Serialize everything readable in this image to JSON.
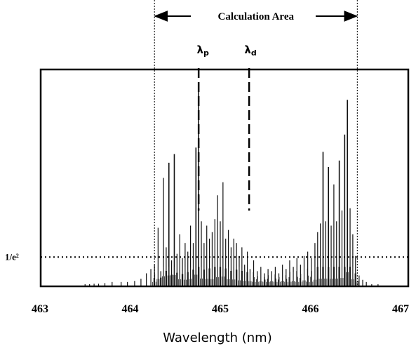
{
  "chart_data": {
    "type": "line",
    "xlabel": "Wavelength (nm)",
    "ylabel": "",
    "title": "",
    "xlim": [
      463,
      467
    ],
    "x_ticks": [
      "463",
      "464",
      "465",
      "466",
      "467"
    ],
    "ylim": [
      0,
      1
    ],
    "grid": false,
    "threshold": {
      "label": "1/e²",
      "value": 0.135
    },
    "calculation_area": {
      "label": "Calculation Area",
      "x_start": 464.27,
      "x_end": 466.52
    },
    "markers": [
      {
        "label_main": "λ",
        "label_sub": "p",
        "x": 464.76
      },
      {
        "label_main": "λ",
        "label_sub": "d",
        "x": 465.32
      }
    ],
    "series": [
      {
        "peaks": [
          [
            463.5,
            0.01
          ],
          [
            463.55,
            0.01
          ],
          [
            463.6,
            0.012
          ],
          [
            463.65,
            0.012
          ],
          [
            463.72,
            0.015
          ],
          [
            463.8,
            0.02
          ],
          [
            463.9,
            0.02
          ],
          [
            463.97,
            0.02
          ],
          [
            464.05,
            0.025
          ],
          [
            464.12,
            0.035
          ],
          [
            464.18,
            0.06
          ],
          [
            464.23,
            0.08
          ],
          [
            464.27,
            0.1
          ],
          [
            464.31,
            0.27
          ],
          [
            464.34,
            0.07
          ],
          [
            464.37,
            0.5
          ],
          [
            464.4,
            0.18
          ],
          [
            464.43,
            0.57
          ],
          [
            464.46,
            0.12
          ],
          [
            464.49,
            0.61
          ],
          [
            464.52,
            0.15
          ],
          [
            464.55,
            0.24
          ],
          [
            464.58,
            0.13
          ],
          [
            464.61,
            0.2
          ],
          [
            464.64,
            0.16
          ],
          [
            464.67,
            0.28
          ],
          [
            464.7,
            0.2
          ],
          [
            464.73,
            0.64
          ],
          [
            464.76,
            0.94
          ],
          [
            464.79,
            0.3
          ],
          [
            464.82,
            0.2
          ],
          [
            464.85,
            0.28
          ],
          [
            464.88,
            0.22
          ],
          [
            464.91,
            0.25
          ],
          [
            464.94,
            0.31
          ],
          [
            464.97,
            0.42
          ],
          [
            465.0,
            0.3
          ],
          [
            465.03,
            0.48
          ],
          [
            465.06,
            0.22
          ],
          [
            465.09,
            0.26
          ],
          [
            465.12,
            0.18
          ],
          [
            465.15,
            0.22
          ],
          [
            465.18,
            0.2
          ],
          [
            465.21,
            0.14
          ],
          [
            465.24,
            0.18
          ],
          [
            465.27,
            0.1
          ],
          [
            465.3,
            0.16
          ],
          [
            465.33,
            0.08
          ],
          [
            465.37,
            0.12
          ],
          [
            465.41,
            0.07
          ],
          [
            465.45,
            0.09
          ],
          [
            465.49,
            0.06
          ],
          [
            465.53,
            0.08
          ],
          [
            465.57,
            0.07
          ],
          [
            465.61,
            0.09
          ],
          [
            465.65,
            0.06
          ],
          [
            465.69,
            0.1
          ],
          [
            465.73,
            0.08
          ],
          [
            465.77,
            0.12
          ],
          [
            465.81,
            0.09
          ],
          [
            465.85,
            0.13
          ],
          [
            465.89,
            0.1
          ],
          [
            465.93,
            0.14
          ],
          [
            465.97,
            0.16
          ],
          [
            466.01,
            0.13
          ],
          [
            466.05,
            0.2
          ],
          [
            466.08,
            0.25
          ],
          [
            466.11,
            0.29
          ],
          [
            466.14,
            0.62
          ],
          [
            466.17,
            0.3
          ],
          [
            466.2,
            0.55
          ],
          [
            466.23,
            0.28
          ],
          [
            466.26,
            0.47
          ],
          [
            466.29,
            0.3
          ],
          [
            466.32,
            0.58
          ],
          [
            466.35,
            0.35
          ],
          [
            466.38,
            0.7
          ],
          [
            466.41,
            0.86
          ],
          [
            466.44,
            0.36
          ],
          [
            466.47,
            0.24
          ],
          [
            466.5,
            0.14
          ],
          [
            466.54,
            0.05
          ],
          [
            466.58,
            0.03
          ],
          [
            466.62,
            0.02
          ],
          [
            466.68,
            0.01
          ],
          [
            466.75,
            0.01
          ]
        ]
      }
    ]
  }
}
